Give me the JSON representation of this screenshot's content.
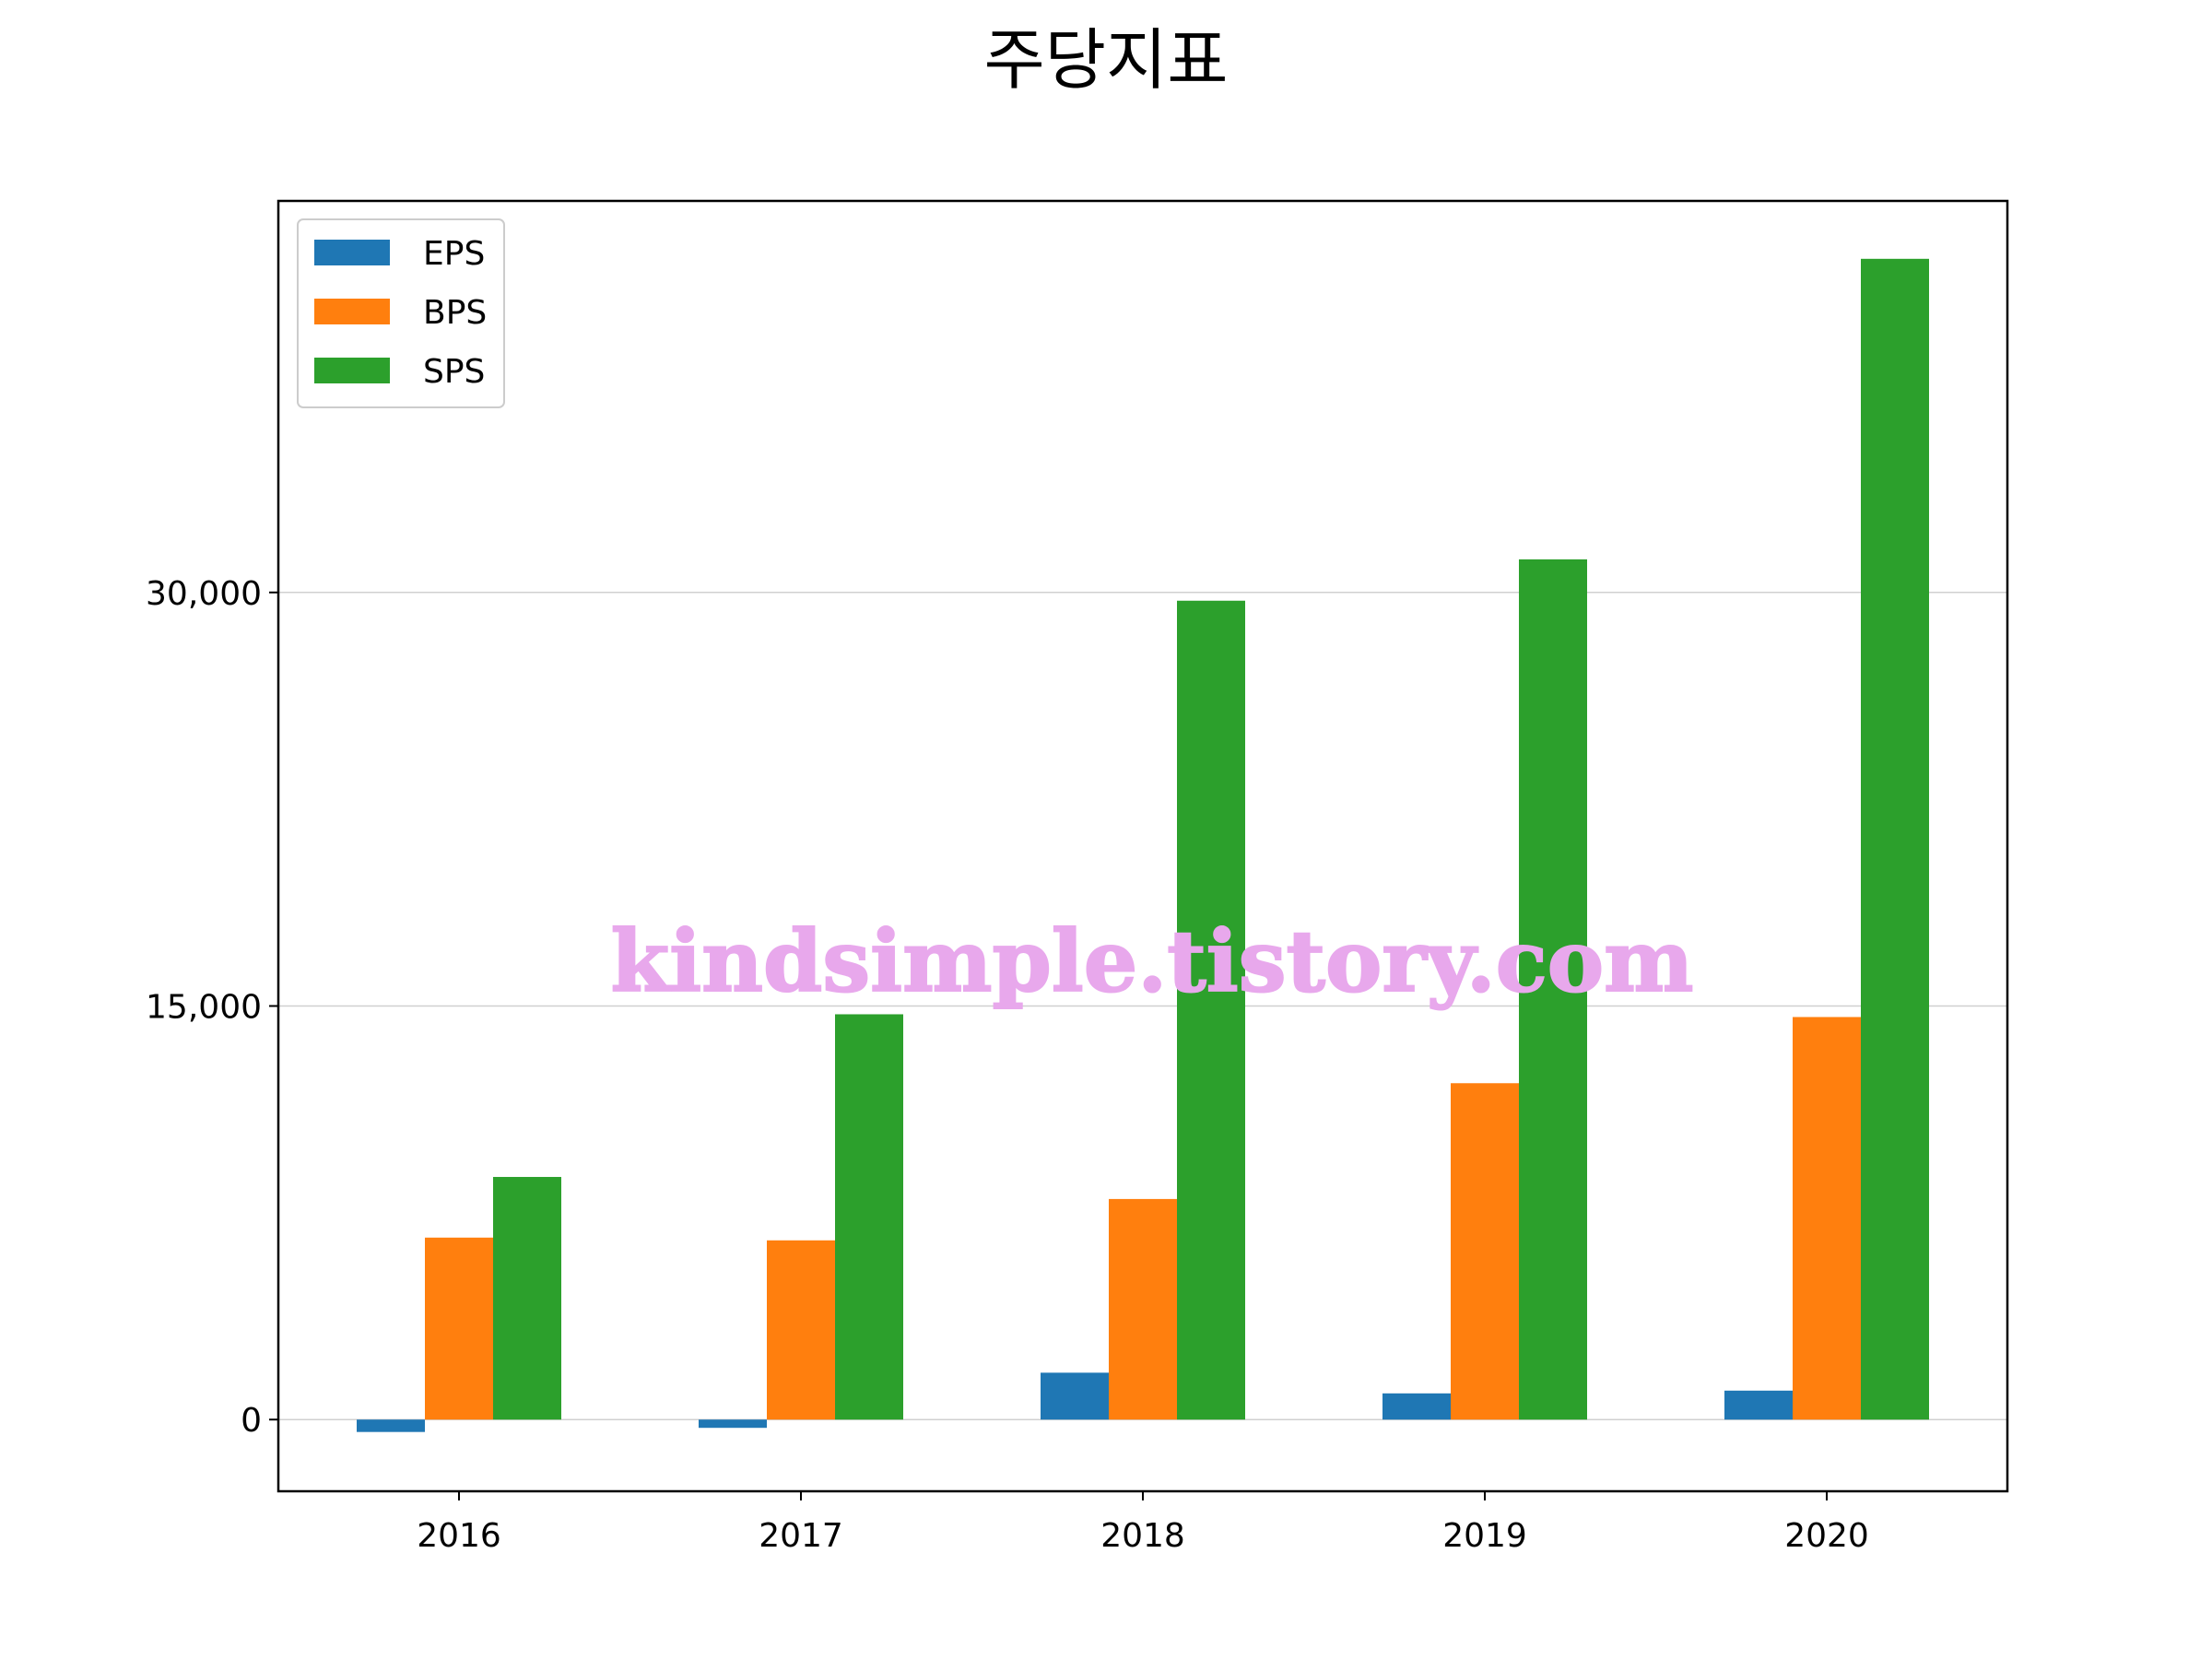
{
  "chart_data": {
    "type": "bar",
    "title": "주당지표",
    "categories": [
      "2016",
      "2017",
      "2018",
      "2019",
      "2020"
    ],
    "series": [
      {
        "name": "EPS",
        "color": "#1f77b4",
        "values": [
          -450,
          -300,
          1700,
          950,
          1050
        ]
      },
      {
        "name": "BPS",
        "color": "#ff7f0e",
        "values": [
          6600,
          6500,
          8000,
          12200,
          14600
        ]
      },
      {
        "name": "SPS",
        "color": "#2ca02c",
        "values": [
          8800,
          14700,
          29700,
          31200,
          42100
        ]
      }
    ],
    "yticks": [
      0,
      15000,
      30000
    ],
    "ytick_labels": [
      "0",
      "15,000",
      "30,000"
    ],
    "ylim": [
      -2600,
      44200
    ],
    "grid": "horizontal",
    "legend_position": "top-left",
    "xlabel": "",
    "ylabel": ""
  },
  "watermark": "kindsimple.tistory.com"
}
